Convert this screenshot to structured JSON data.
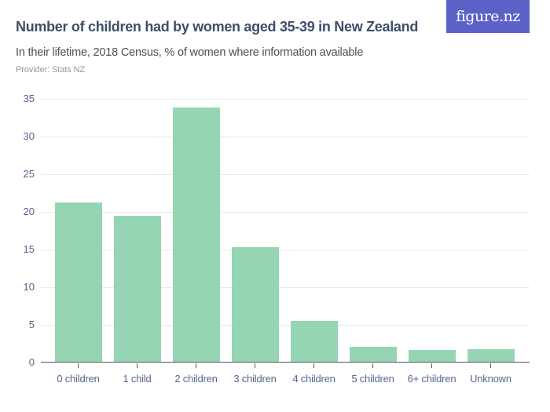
{
  "header": {
    "title": "Number of children had by women aged 35-39 in New Zealand",
    "subtitle": "In their lifetime, 2018 Census, % of women where information available",
    "provider": "Provider: Stats NZ",
    "logo_text": "figure.nz"
  },
  "colors": {
    "logo_bg": "#5c61c8",
    "title": "#3d4e6b",
    "subtitle": "#4e4f52",
    "provider": "#98989a",
    "bar": "#96d5b3",
    "axis_label": "#54678e",
    "gridline": "#eaeaea",
    "axis_line": "#56575b"
  },
  "chart_data": {
    "type": "bar",
    "title": "Number of children had by women aged 35-39 in New Zealand",
    "subtitle": "In their lifetime, 2018 Census, % of women where information available",
    "source": "Provider: Stats NZ",
    "categories": [
      "0 children",
      "1 child",
      "2 children",
      "3 children",
      "4 children",
      "5 children",
      "6+ children",
      "Unknown"
    ],
    "values": [
      21.1,
      19.4,
      33.7,
      15.2,
      5.4,
      2.0,
      1.6,
      1.7
    ],
    "xlabel": "",
    "ylabel": "",
    "ylim": [
      0,
      35
    ],
    "yticks": [
      0,
      5,
      10,
      15,
      20,
      25,
      30,
      35
    ],
    "grid": true,
    "legend": false,
    "bar_color": "#96d5b3"
  }
}
